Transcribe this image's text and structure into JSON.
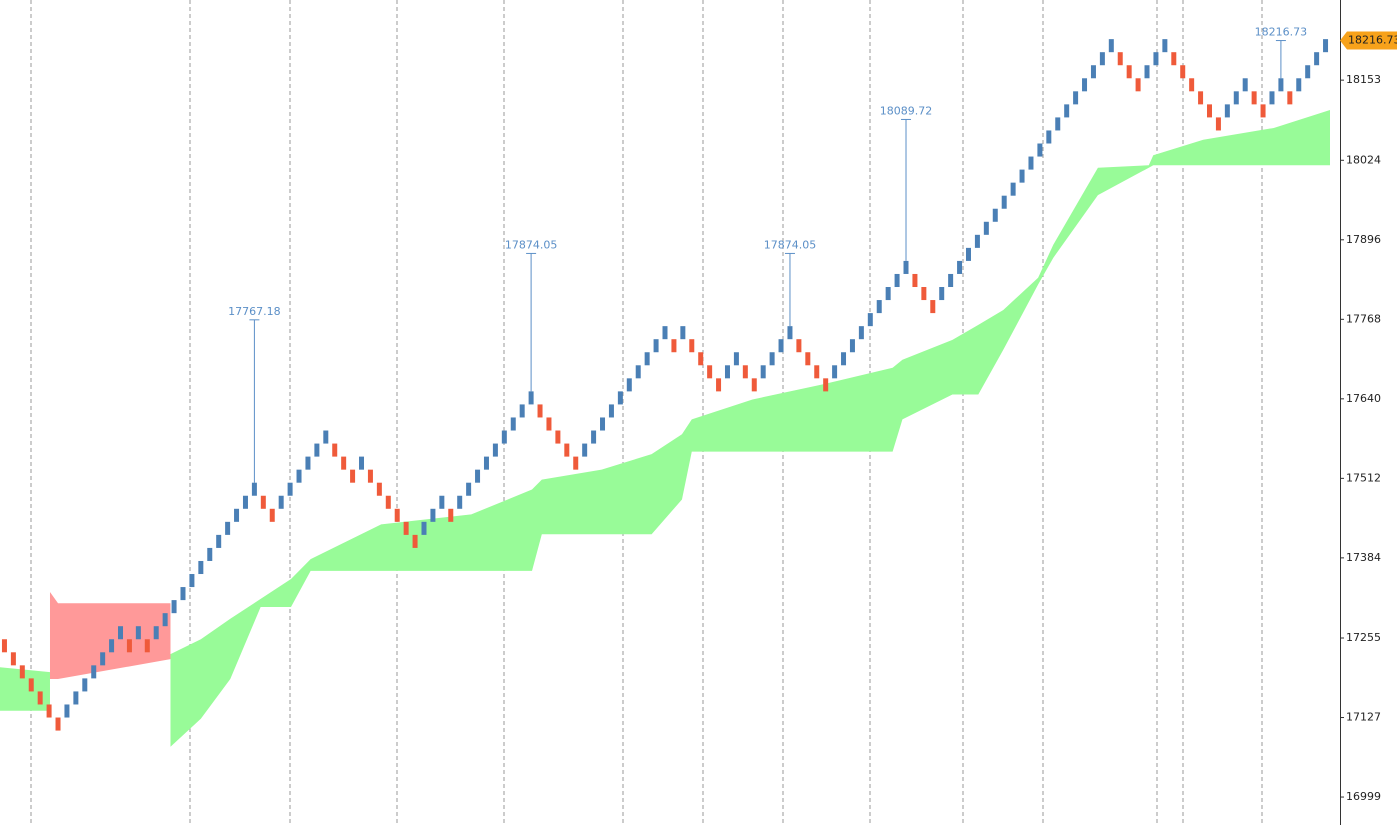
{
  "chart_data": {
    "type": "renko",
    "xlim": [
      0,
      149
    ],
    "ylim": [
      16954,
      18282
    ],
    "yticks": [
      18153,
      18024,
      17896,
      17768,
      17640,
      17512,
      17384,
      17255,
      17127,
      16999
    ],
    "up_color": "#4a7fb5",
    "down_color": "#ef5a3a",
    "open": [
      17253,
      17232,
      17211,
      17190,
      17169,
      17148,
      17127,
      17127,
      17148,
      17169,
      17190,
      17211,
      17232,
      17253,
      17253,
      17253,
      17253,
      17253,
      17274,
      17295,
      17316,
      17337,
      17358,
      17379,
      17400,
      17421,
      17442,
      17463,
      17484,
      17484,
      17463,
      17463,
      17484,
      17505,
      17526,
      17547,
      17568,
      17568,
      17547,
      17526,
      17526,
      17526,
      17505,
      17484,
      17463,
      17442,
      17421,
      17421,
      17442,
      17463,
      17463,
      17463,
      17484,
      17505,
      17526,
      17547,
      17568,
      17589,
      17610,
      17631,
      17631,
      17610,
      17589,
      17568,
      17547,
      17547,
      17568,
      17589,
      17610,
      17631,
      17652,
      17673,
      17694,
      17715,
      17736,
      17736,
      17736,
      17736,
      17715,
      17694,
      17673,
      17673,
      17694,
      17694,
      17673,
      17673,
      17694,
      17715,
      17736,
      17736,
      17715,
      17694,
      17673,
      17673,
      17694,
      17715,
      17736,
      17757,
      17778,
      17799,
      17820,
      17841,
      17841,
      17820,
      17799,
      17799,
      17820,
      17841,
      17862,
      17883,
      17904,
      17925,
      17946,
      17967,
      17988,
      18009,
      18030,
      18051,
      18072,
      18093,
      18114,
      18135,
      18156,
      18177,
      18198,
      18198,
      18177,
      18156,
      18156,
      18177,
      18198,
      18198,
      18177,
      18156,
      18135,
      18114,
      18093,
      18093,
      18114,
      18135,
      18135,
      18114,
      18114,
      18135,
      18135,
      18135,
      18156,
      18177,
      18198
    ],
    "close": [
      17232,
      17211,
      17190,
      17169,
      17148,
      17127,
      17106,
      17148,
      17169,
      17190,
      17211,
      17232,
      17253,
      17274,
      17232,
      17274,
      17232,
      17274,
      17295,
      17316,
      17337,
      17358,
      17379,
      17400,
      17421,
      17442,
      17463,
      17484,
      17505,
      17463,
      17442,
      17484,
      17505,
      17526,
      17547,
      17568,
      17589,
      17547,
      17526,
      17505,
      17547,
      17505,
      17484,
      17463,
      17442,
      17421,
      17400,
      17442,
      17463,
      17484,
      17442,
      17484,
      17505,
      17526,
      17547,
      17568,
      17589,
      17610,
      17631,
      17652,
      17610,
      17589,
      17568,
      17547,
      17526,
      17568,
      17589,
      17610,
      17631,
      17652,
      17673,
      17694,
      17715,
      17736,
      17757,
      17715,
      17757,
      17715,
      17694,
      17673,
      17652,
      17694,
      17715,
      17673,
      17652,
      17694,
      17715,
      17736,
      17757,
      17715,
      17694,
      17673,
      17652,
      17694,
      17715,
      17736,
      17757,
      17778,
      17799,
      17820,
      17841,
      17862,
      17820,
      17799,
      17778,
      17820,
      17841,
      17862,
      17883,
      17904,
      17925,
      17946,
      17967,
      17988,
      18009,
      18030,
      18051,
      18072,
      18093,
      18114,
      18135,
      18156,
      18177,
      18198,
      18219,
      18177,
      18156,
      18135,
      18177,
      18198,
      18219,
      18177,
      18156,
      18135,
      18114,
      18093,
      18072,
      18114,
      18135,
      18156,
      18114,
      18093,
      18135,
      18156,
      18114,
      18156,
      18177,
      18198,
      18219
    ],
    "clouds": [
      {
        "color": "#98fb98",
        "x": [
          0,
          5.6
        ],
        "upper": [
          17208,
          17200
        ],
        "lower": [
          17138,
          17138
        ]
      },
      {
        "color": "#ff9999",
        "x": [
          5.6,
          6.5,
          19.1
        ],
        "upper": [
          17329,
          17311,
          17311
        ],
        "lower": [
          17189,
          17189,
          17221
        ]
      },
      {
        "color": "#98fb98",
        "x": [
          19.1,
          22.5,
          25.8,
          29.2,
          32.6,
          34.8,
          42.7,
          52.8,
          59.6,
          60.7,
          67.4,
          73,
          76.4,
          77.5,
          84.3,
          92.1,
          100,
          101.1,
          106.7,
          109.6,
          112.4,
          116.3,
          118,
          123,
          128.7,
          129.2,
          134.8,
          142.7,
          149
        ],
        "upper": [
          17229,
          17253,
          17286,
          17318,
          17350,
          17382,
          17438,
          17454,
          17494,
          17510,
          17526,
          17551,
          17583,
          17607,
          17639,
          17663,
          17690,
          17703,
          17735,
          17759,
          17783,
          17835,
          17888,
          18012,
          18016,
          18032,
          18057,
          18076,
          18105
        ],
        "lower": [
          17080,
          17125,
          17189,
          17305,
          17305,
          17363,
          17363,
          17363,
          17363,
          17422,
          17422,
          17422,
          17478,
          17555,
          17555,
          17555,
          17555,
          17607,
          17647,
          17647,
          17719,
          17824,
          17867,
          17968,
          18012,
          18016,
          18016,
          18016,
          18016
        ]
      }
    ],
    "annotations": [
      {
        "x": 28,
        "value": 17767.18
      },
      {
        "x": 59,
        "value": 17874.05
      },
      {
        "x": 88,
        "value": 17874.05
      },
      {
        "x": 101,
        "value": 18089.72
      },
      {
        "x": 143,
        "value": 18216.73
      }
    ],
    "annotation_color": "#5b8fc7",
    "last_price": 18216.73,
    "last_price_color": "#f7a21b"
  }
}
